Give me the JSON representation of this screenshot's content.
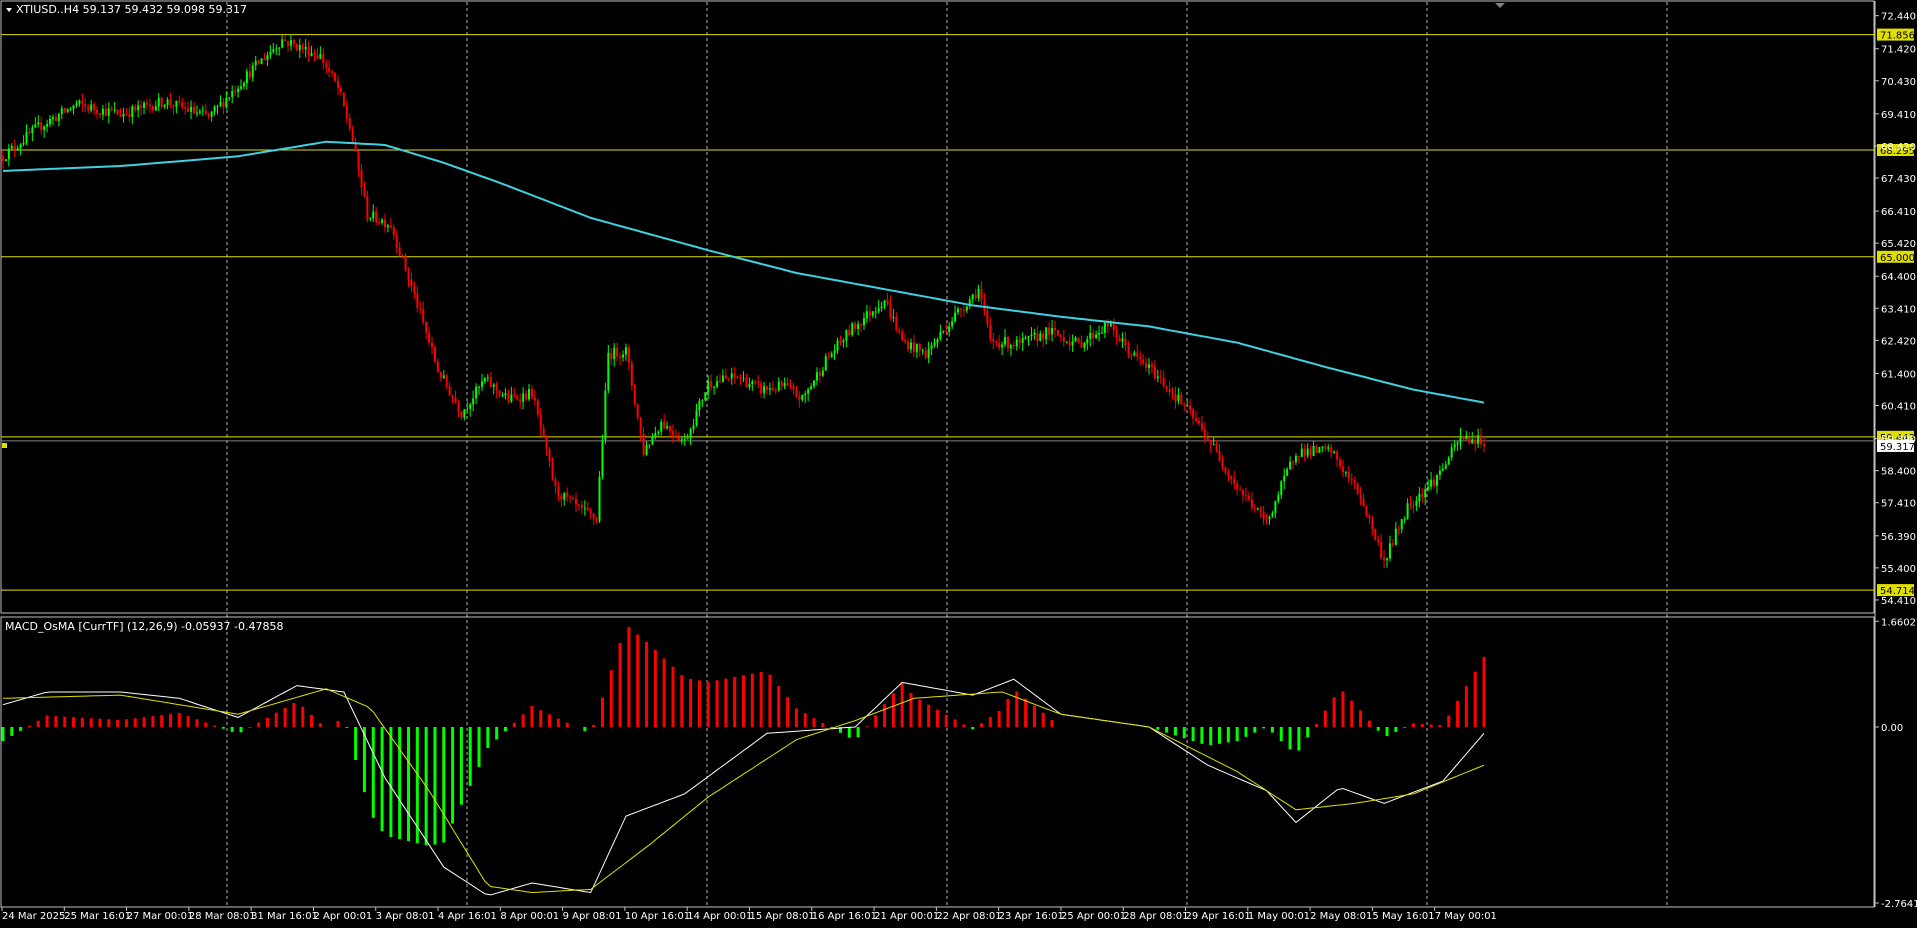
{
  "header": {
    "symbol_line": "XTIUSD..H4  59.137 59.432 59.098 59.317",
    "indicator_line": "MACD_OsMA [CurrTF] (12,26,9) -0.05937 -0.47858"
  },
  "colors": {
    "background": "#000000",
    "frame": "#c0c0c0",
    "grid": "#ffffff",
    "bull": "#00ff00",
    "bear": "#ff0000",
    "ma": "#40d0e0",
    "level": "#e0e000",
    "macd_line": "#ffffff",
    "signal_line": "#e0e000"
  },
  "price_axis": {
    "ticks": [
      "72.440",
      "71.420",
      "70.430",
      "69.410",
      "68.420",
      "67.430",
      "66.410",
      "65.420",
      "64.400",
      "63.410",
      "62.420",
      "61.400",
      "60.410",
      "59.390",
      "58.400",
      "57.410",
      "56.390",
      "55.400",
      "54.410"
    ],
    "levels": [
      "71.856",
      "68.295",
      "65.000",
      "59.443",
      "54.714"
    ],
    "current_price": "59.317"
  },
  "indicator_axis": {
    "ticks": [
      "1.66027",
      "0.00",
      "-2.76411"
    ]
  },
  "time_axis": {
    "labels": [
      "24 Mar 2025",
      "25 Mar 16:01",
      "27 Mar 00:01",
      "28 Mar 08:01",
      "31 Mar 16:01",
      "2 Apr 00:01",
      "3 Apr 08:01",
      "4 Apr 16:01",
      "8 Apr 00:01",
      "9 Apr 08:01",
      "10 Apr 16:01",
      "14 Apr 00:01",
      "15 Apr 08:01",
      "16 Apr 16:01",
      "21 Apr 00:01",
      "22 Apr 08:01",
      "23 Apr 16:01",
      "25 Apr 00:01",
      "28 Apr 08:01",
      "29 Apr 16:01",
      "1 May 00:01",
      "2 May 08:01",
      "5 May 16:01",
      "7 May 00:01"
    ]
  },
  "chart_data": {
    "type": "candlestick",
    "price_ylim": [
      54.1,
      72.8
    ],
    "close_anchors": [
      [
        0,
        68.1
      ],
      [
        12,
        69.0
      ],
      [
        25,
        69.7
      ],
      [
        40,
        69.4
      ],
      [
        55,
        69.8
      ],
      [
        70,
        69.3
      ],
      [
        85,
        70.8
      ],
      [
        95,
        71.7
      ],
      [
        108,
        71.2
      ],
      [
        114,
        70.2
      ],
      [
        118,
        69.0
      ],
      [
        124,
        66.3
      ],
      [
        132,
        66.0
      ],
      [
        140,
        63.8
      ],
      [
        148,
        61.5
      ],
      [
        156,
        60.2
      ],
      [
        164,
        61.2
      ],
      [
        172,
        60.6
      ],
      [
        180,
        60.8
      ],
      [
        188,
        57.8
      ],
      [
        196,
        57.2
      ],
      [
        202,
        56.9
      ],
      [
        206,
        62.0
      ],
      [
        212,
        62.1
      ],
      [
        218,
        59.0
      ],
      [
        224,
        59.9
      ],
      [
        232,
        59.3
      ],
      [
        240,
        61.1
      ],
      [
        250,
        61.3
      ],
      [
        258,
        60.9
      ],
      [
        266,
        61.0
      ],
      [
        272,
        60.6
      ],
      [
        280,
        61.8
      ],
      [
        288,
        62.7
      ],
      [
        300,
        63.7
      ],
      [
        306,
        62.4
      ],
      [
        314,
        62.0
      ],
      [
        324,
        63.2
      ],
      [
        332,
        64.0
      ],
      [
        336,
        62.4
      ],
      [
        346,
        62.3
      ],
      [
        356,
        62.7
      ],
      [
        366,
        62.3
      ],
      [
        376,
        62.9
      ],
      [
        384,
        62.0
      ],
      [
        392,
        61.4
      ],
      [
        402,
        60.4
      ],
      [
        410,
        59.4
      ],
      [
        420,
        57.9
      ],
      [
        430,
        56.8
      ],
      [
        440,
        59.0
      ],
      [
        452,
        59.0
      ],
      [
        462,
        57.6
      ],
      [
        470,
        55.6
      ],
      [
        478,
        57.3
      ],
      [
        488,
        58.2
      ],
      [
        496,
        59.4
      ],
      [
        504,
        59.32
      ]
    ],
    "ma_anchors": [
      [
        0,
        67.65
      ],
      [
        40,
        67.8
      ],
      [
        80,
        68.1
      ],
      [
        110,
        68.55
      ],
      [
        130,
        68.45
      ],
      [
        150,
        67.9
      ],
      [
        170,
        67.25
      ],
      [
        200,
        66.2
      ],
      [
        240,
        65.2
      ],
      [
        270,
        64.5
      ],
      [
        300,
        64.0
      ],
      [
        330,
        63.5
      ],
      [
        360,
        63.15
      ],
      [
        390,
        62.85
      ],
      [
        420,
        62.35
      ],
      [
        450,
        61.6
      ],
      [
        480,
        60.9
      ],
      [
        504,
        60.5
      ]
    ],
    "macd_anchors": [
      [
        0,
        0.35
      ],
      [
        15,
        0.55
      ],
      [
        40,
        0.55
      ],
      [
        60,
        0.45
      ],
      [
        80,
        0.15
      ],
      [
        100,
        0.65
      ],
      [
        116,
        0.55
      ],
      [
        130,
        -0.8
      ],
      [
        150,
        -2.2
      ],
      [
        165,
        -2.65
      ],
      [
        180,
        -2.45
      ],
      [
        200,
        -2.6
      ],
      [
        212,
        -1.4
      ],
      [
        232,
        -1.05
      ],
      [
        260,
        -0.1
      ],
      [
        290,
        0.0
      ],
      [
        306,
        0.7
      ],
      [
        330,
        0.5
      ],
      [
        344,
        0.75
      ],
      [
        360,
        0.2
      ],
      [
        390,
        0.0
      ],
      [
        410,
        -0.6
      ],
      [
        430,
        -1.0
      ],
      [
        440,
        -1.5
      ],
      [
        455,
        -0.95
      ],
      [
        470,
        -1.2
      ],
      [
        490,
        -0.85
      ],
      [
        504,
        -0.1
      ]
    ],
    "signal_anchors": [
      [
        0,
        0.45
      ],
      [
        40,
        0.5
      ],
      [
        80,
        0.2
      ],
      [
        110,
        0.6
      ],
      [
        125,
        0.3
      ],
      [
        145,
        -1.0
      ],
      [
        165,
        -2.5
      ],
      [
        180,
        -2.6
      ],
      [
        200,
        -2.55
      ],
      [
        220,
        -1.85
      ],
      [
        240,
        -1.1
      ],
      [
        270,
        -0.2
      ],
      [
        290,
        0.1
      ],
      [
        310,
        0.45
      ],
      [
        340,
        0.55
      ],
      [
        360,
        0.2
      ],
      [
        390,
        0.0
      ],
      [
        420,
        -0.7
      ],
      [
        440,
        -1.3
      ],
      [
        460,
        -1.2
      ],
      [
        480,
        -1.05
      ],
      [
        504,
        -0.6
      ]
    ],
    "indicator_ylim": [
      -2.78,
      1.68
    ],
    "bar_count": 505
  }
}
